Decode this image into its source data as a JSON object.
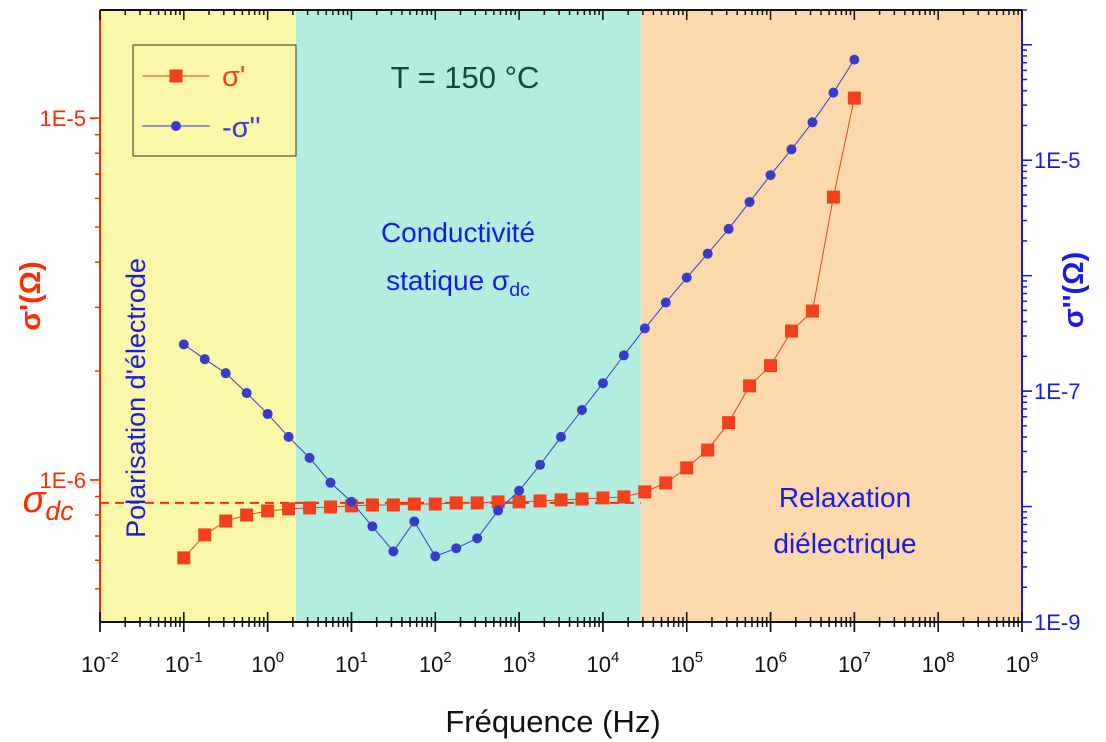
{
  "chart_data": {
    "type": "line",
    "x_label": "Fréquence (Hz)",
    "y_label": "σ'(Ω)",
    "y2_label": "σ''(Ω)",
    "log_x": true,
    "log_y": true,
    "log_y2": true,
    "xlim": [
      0.01,
      1000000000
    ],
    "xticks": [
      {
        "value": 0.01,
        "label": "10-2"
      },
      {
        "value": 0.1,
        "label": "10-1"
      },
      {
        "value": 1,
        "label": "100"
      },
      {
        "value": 10,
        "label": "101"
      },
      {
        "value": 100,
        "label": "102"
      },
      {
        "value": 1000,
        "label": "103"
      },
      {
        "value": 10000,
        "label": "104"
      },
      {
        "value": 100000,
        "label": "105"
      },
      {
        "value": 1000000,
        "label": "106"
      },
      {
        "value": 10000000,
        "label": "107"
      },
      {
        "value": 100000000,
        "label": "108"
      },
      {
        "value": 1000000000,
        "label": "109"
      }
    ],
    "ylim": [
      4.05e-07,
      1.99e-05
    ],
    "yticks": [
      {
        "value": 1e-06,
        "label": "1E-6"
      },
      {
        "value": 1e-05,
        "label": "1E-5"
      }
    ],
    "y2lim": [
      1e-09,
      0.0002
    ],
    "y2ticks": [
      {
        "value": 1e-09,
        "label": "1E-9"
      },
      {
        "value": 1e-07,
        "label": "1E-7"
      },
      {
        "value": 1e-05,
        "label": "1E-5"
      }
    ],
    "regions": [
      {
        "from": 0.01,
        "to": 2.17,
        "color": "#fbf7a8"
      },
      {
        "from": 2.17,
        "to": 28250,
        "color": "#b3ede0"
      },
      {
        "from": 28250,
        "to": 1000000000,
        "color": "#fcd9ac"
      }
    ],
    "reference_line": {
      "value": 8.64e-07,
      "xrange": [
        0.01,
        28250
      ],
      "label": "σdc",
      "color": "#ff2a00"
    },
    "annotations": [
      {
        "text": "T = 150 °C"
      },
      {
        "lines": [
          "Conductivité",
          "statique σdc"
        ]
      },
      {
        "text": "Polarisation d'électrode"
      },
      {
        "lines": [
          "Relaxation",
          "diélectrique"
        ]
      }
    ],
    "x": [
      0.1,
      0.1778,
      0.3162,
      0.5623,
      1,
      1.778,
      3.162,
      5.623,
      10,
      17.78,
      31.62,
      56.23,
      100,
      177.8,
      316.2,
      562.3,
      1000,
      1778,
      3162,
      5623,
      10000,
      17780,
      31620,
      56230,
      100000,
      177800,
      316200,
      562300,
      1000000,
      1778000,
      3162000,
      5623000,
      10000000
    ],
    "series": [
      {
        "name": "σ'",
        "color": "#f2401c",
        "marker": "square",
        "values": [
          6.09e-07,
          7.05e-07,
          7.7e-07,
          8e-07,
          8.21e-07,
          8.32e-07,
          8.37e-07,
          8.42e-07,
          8.48e-07,
          8.53e-07,
          8.53e-07,
          8.58e-07,
          8.58e-07,
          8.64e-07,
          8.64e-07,
          8.7e-07,
          8.7e-07,
          8.75e-07,
          8.81e-07,
          8.86e-07,
          8.92e-07,
          8.98e-07,
          9.27e-07,
          9.81e-07,
          1.08e-06,
          1.21e-06,
          1.44e-06,
          1.82e-06,
          2.07e-06,
          2.58e-06,
          2.93e-06,
          6.05e-06,
          1.136e-05
        ]
      },
      {
        "name": "-σ''",
        "color": "#3a3ac8",
        "marker": "circle",
        "axis": "y2",
        "values": [
          2.54e-07,
          1.89e-07,
          1.43e-07,
          9.62e-08,
          6.34e-08,
          4.01e-08,
          2.64e-08,
          1.61e-08,
          1.1e-08,
          6.73e-09,
          4.09e-09,
          7.43e-09,
          3.71e-09,
          4.35e-09,
          5.3e-09,
          9.24e-09,
          1.37e-08,
          2.3e-08,
          4.01e-08,
          6.86e-08,
          1.17e-07,
          2.04e-07,
          3.49e-07,
          5.85e-07,
          9.61e-07,
          1.55e-06,
          2.54e-06,
          4.35e-06,
          7.43e-06,
          1.24e-05,
          2.13e-05,
          3.85e-05,
          7.43e-05
        ]
      }
    ]
  }
}
